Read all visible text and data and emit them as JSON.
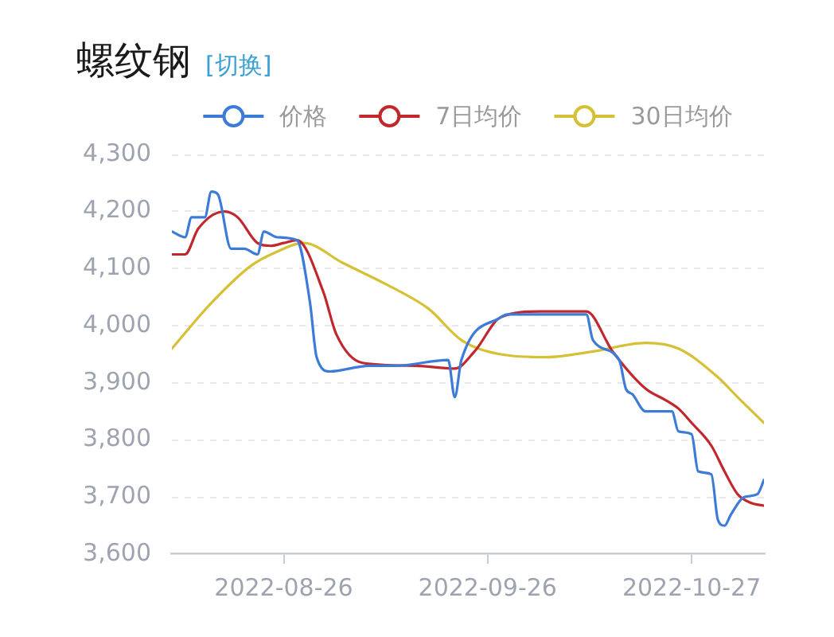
{
  "chart_data": {
    "type": "line",
    "title": "螺纹钢",
    "annotations": [
      "[切换]"
    ],
    "xlim": [
      "2022-08-09",
      "2022-11-07"
    ],
    "xticks": [
      "2022-08-26",
      "2022-09-26",
      "2022-10-27"
    ],
    "ylim": [
      3600,
      4300
    ],
    "yticks": [
      {
        "value": 3600,
        "label": "3,600"
      },
      {
        "value": 3700,
        "label": "3,700"
      },
      {
        "value": 3800,
        "label": "3,800"
      },
      {
        "value": 3900,
        "label": "3,900"
      },
      {
        "value": 4000,
        "label": "4,000"
      },
      {
        "value": 4100,
        "label": "4,100"
      },
      {
        "value": 4200,
        "label": "4,200"
      },
      {
        "value": 4300,
        "label": "4,300"
      }
    ],
    "grid": "y",
    "legend": "top",
    "marker": "none",
    "line_style": "solid",
    "series": [
      {
        "name": "价格",
        "color": "#3d7bd8",
        "x": [
          "2022-08-09",
          "2022-08-11",
          "2022-08-12",
          "2022-08-14",
          "2022-08-15",
          "2022-08-16",
          "2022-08-18",
          "2022-08-20",
          "2022-08-22",
          "2022-08-23",
          "2022-08-25",
          "2022-08-28",
          "2022-08-30",
          "2022-08-31",
          "2022-09-02",
          "2022-09-08",
          "2022-09-12",
          "2022-09-20",
          "2022-09-21",
          "2022-09-22",
          "2022-09-28",
          "2022-09-29",
          "2022-10-11",
          "2022-10-12",
          "2022-10-16",
          "2022-10-17",
          "2022-10-18",
          "2022-10-20",
          "2022-10-24",
          "2022-10-25",
          "2022-10-27",
          "2022-10-28",
          "2022-10-30",
          "2022-10-31",
          "2022-11-01",
          "2022-11-02",
          "2022-11-04",
          "2022-11-06",
          "2022-11-07"
        ],
        "values": [
          4165,
          4155,
          4190,
          4190,
          4235,
          4230,
          4135,
          4135,
          4125,
          4165,
          4155,
          4150,
          4040,
          3945,
          3920,
          3930,
          3930,
          3940,
          3875,
          3940,
          4015,
          4020,
          4020,
          3975,
          3940,
          3890,
          3880,
          3850,
          3850,
          3815,
          3810,
          3745,
          3740,
          3660,
          3650,
          3670,
          3700,
          3705,
          3730
        ]
      },
      {
        "name": "7日均价",
        "color": "#c0282e",
        "x": [
          "2022-08-09",
          "2022-08-11",
          "2022-08-13",
          "2022-08-17",
          "2022-08-19",
          "2022-08-22",
          "2022-08-24",
          "2022-08-26",
          "2022-08-28",
          "2022-09-01",
          "2022-09-03",
          "2022-09-07",
          "2022-09-15",
          "2022-09-21",
          "2022-09-24",
          "2022-09-28",
          "2022-10-04",
          "2022-10-11",
          "2022-10-15",
          "2022-10-20",
          "2022-10-23",
          "2022-10-25",
          "2022-10-27",
          "2022-10-30",
          "2022-11-01",
          "2022-11-03",
          "2022-11-05",
          "2022-11-07"
        ],
        "values": [
          4125,
          4125,
          4170,
          4200,
          4190,
          4145,
          4140,
          4145,
          4150,
          4060,
          3985,
          3935,
          3930,
          3925,
          3955,
          4015,
          4025,
          4025,
          3955,
          3890,
          3870,
          3855,
          3830,
          3790,
          3745,
          3705,
          3690,
          3685
        ]
      },
      {
        "name": "30日均价",
        "color": "#d6c036",
        "x": [
          "2022-08-09",
          "2022-08-15",
          "2022-08-21",
          "2022-08-25",
          "2022-08-29",
          "2022-09-04",
          "2022-09-11",
          "2022-09-17",
          "2022-09-22",
          "2022-09-28",
          "2022-10-05",
          "2022-10-12",
          "2022-10-20",
          "2022-10-25",
          "2022-10-31",
          "2022-11-03",
          "2022-11-07"
        ],
        "values": [
          3960,
          4040,
          4105,
          4130,
          4145,
          4110,
          4070,
          4030,
          3975,
          3950,
          3945,
          3955,
          3970,
          3960,
          3910,
          3875,
          3830
        ]
      }
    ]
  }
}
